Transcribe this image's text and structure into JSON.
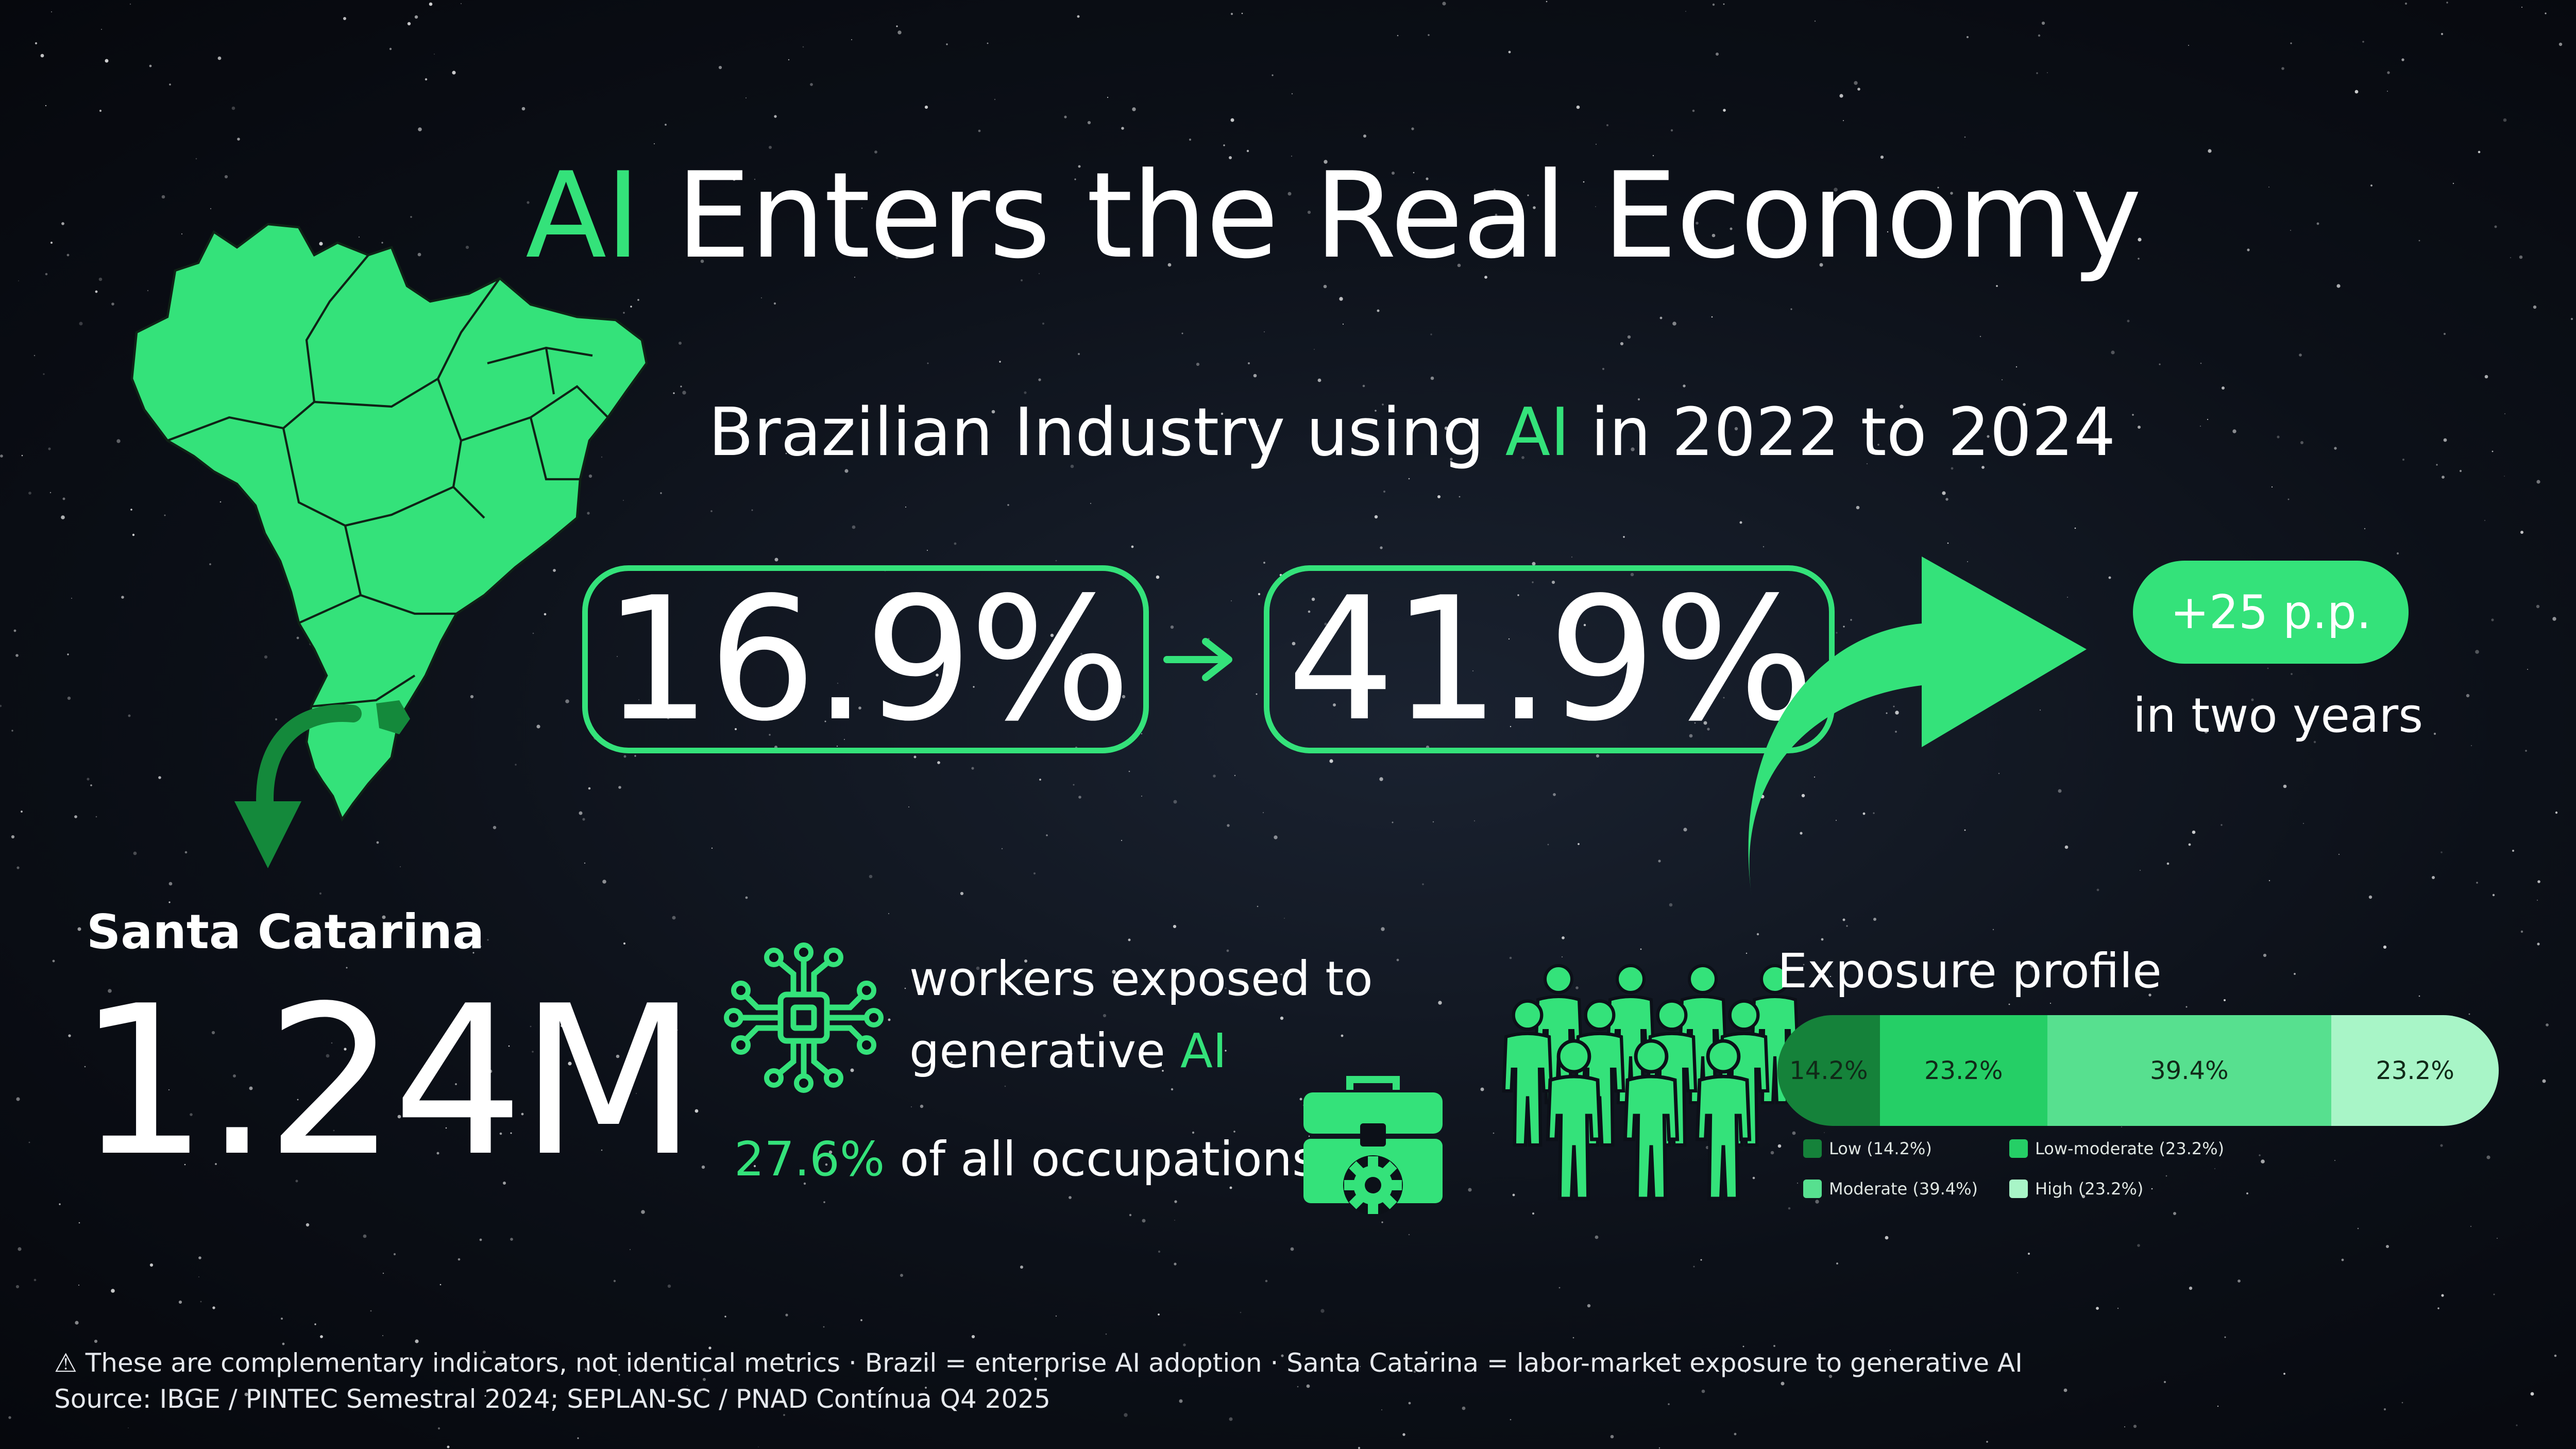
{
  "title": {
    "highlight": "AI",
    "rest": "Enters the Real Economy"
  },
  "subtitle": {
    "before": "Brazilian Industry using",
    "highlight": "AI",
    "after": "in 2022 to 2024"
  },
  "brazil": {
    "value_2022": "16.9%",
    "value_2024": "41.9%",
    "change_badge": "+25 p.p.",
    "change_caption": "in two years"
  },
  "santa_catarina": {
    "label": "Santa Catarina",
    "workers_value": "1.24M",
    "workers_line1": "workers exposed to",
    "workers_line2_before": "generative",
    "workers_line2_highlight": "AI",
    "occupations_pct": "27.6%",
    "occupations_text": "of all occupations"
  },
  "exposure_profile": {
    "title": "Exposure profile",
    "segments": [
      {
        "label": "14.2%",
        "value": 14.2,
        "color": "#15823a"
      },
      {
        "label": "23.2%",
        "value": 23.2,
        "color": "#25cf66"
      },
      {
        "label": "39.4%",
        "value": 39.4,
        "color": "#57e08f"
      },
      {
        "label": "23.2%",
        "value": 23.2,
        "color": "#a8f5c7"
      }
    ],
    "legend": [
      {
        "label": "Low (14.2%)",
        "color": "#15823a"
      },
      {
        "label": "Low-moderate (23.2%)",
        "color": "#25cf66"
      },
      {
        "label": "Moderate (39.4%)",
        "color": "#57e08f"
      },
      {
        "label": "High (23.2%)",
        "color": "#a8f5c7"
      }
    ]
  },
  "footnote": "These are complementary indicators, not identical metrics · Brazil = enterprise AI adoption · Santa Catarina = labor-market exposure to generative AI",
  "source": "Source: IBGE / PINTEC Semestral 2024; SEPLAN-SC / PNAD Contínua Q4 2025",
  "colors": {
    "accent": "#34e27a",
    "dark_accent": "#14893b",
    "background": "#0c1018"
  },
  "icons": [
    "brazil-map-icon",
    "curved-down-arrow-icon",
    "right-arrow-icon",
    "big-curved-arrow-icon",
    "chip-circuit-icon",
    "toolbox-gear-icon",
    "people-group-icon",
    "warning-icon"
  ]
}
